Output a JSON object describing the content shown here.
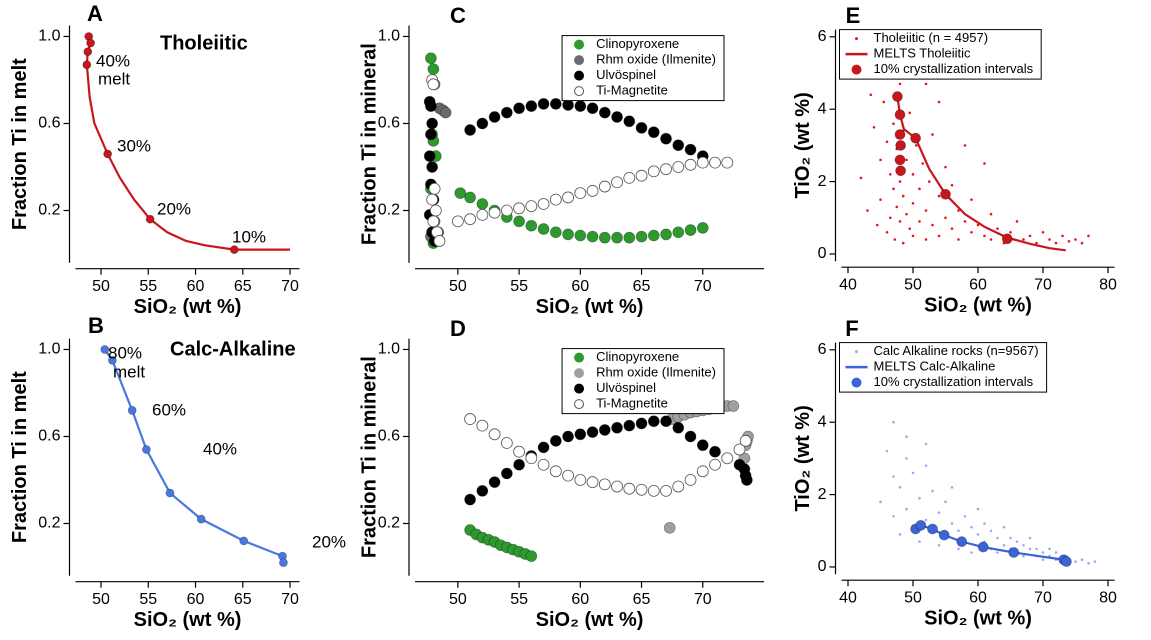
{
  "chart_data": [
    {
      "type": "line",
      "panel_label": "A",
      "title": "Tholeiitic",
      "xlabel": "SiO₂ (wt %)",
      "ylabel": "Fraction Ti in melt",
      "xlim": [
        47.3,
        71
      ],
      "ylim": [
        -0.04,
        1.05
      ],
      "xticks": [
        50,
        55,
        60,
        65,
        70
      ],
      "yticks": [
        {
          "value": 1,
          "label": "1.0"
        },
        0.6,
        0.2
      ],
      "series": [
        {
          "kind": "line",
          "color": "#c8161d",
          "x": [
            48.7,
            48.9,
            48.6,
            48.5,
            48.8,
            49.3,
            50.7,
            52,
            53.5,
            55.2,
            57,
            59,
            61,
            64.1,
            66,
            70
          ],
          "values": [
            1.0,
            0.97,
            0.93,
            0.87,
            0.72,
            0.6,
            0.46,
            0.35,
            0.25,
            0.16,
            0.1,
            0.06,
            0.04,
            0.02,
            0.02,
            0.02
          ]
        },
        {
          "kind": "marker",
          "filled": true,
          "color": "#c8161d",
          "x": [
            48.7,
            48.9,
            48.6,
            48.5,
            50.7,
            55.2,
            64.1
          ],
          "values": [
            1.0,
            0.97,
            0.93,
            0.87,
            0.46,
            0.16,
            0.02
          ]
        }
      ],
      "annotations": [
        "40%",
        "melt",
        "30%",
        "20%",
        "10%"
      ]
    },
    {
      "type": "line",
      "panel_label": "B",
      "title": "Calc-Alkaline",
      "xlabel": "SiO₂ (wt %)",
      "ylabel": "Fraction Ti in melt",
      "xlim": [
        47.3,
        71
      ],
      "ylim": [
        -0.04,
        1.05
      ],
      "xticks": [
        50,
        55,
        60,
        65,
        70
      ],
      "yticks": [
        {
          "value": 1,
          "label": "1.0"
        },
        0.6,
        0.2
      ],
      "series": [
        {
          "kind": "linemarker",
          "filled": true,
          "color": "#4a78e0",
          "x": [
            50.4,
            51.2,
            53.3,
            54.8,
            57.3,
            60.6,
            65.1,
            69.2,
            69.3
          ],
          "values": [
            1.0,
            0.95,
            0.72,
            0.54,
            0.34,
            0.22,
            0.12,
            0.05,
            0.02
          ]
        }
      ],
      "annotations": [
        "80%",
        "melt",
        "60%",
        "40%",
        "20%"
      ]
    },
    {
      "type": "scatter",
      "panel_label": "C",
      "xlabel": "SiO₂ (wt %)",
      "ylabel": "Fraction Ti in mineral",
      "xlim": [
        46.5,
        75
      ],
      "ylim": [
        -0.04,
        1.05
      ],
      "xticks": [
        50,
        55,
        60,
        65,
        70
      ],
      "yticks": [
        {
          "value": 1,
          "label": "1.0"
        },
        0.6,
        0.2
      ],
      "legend": "upper right",
      "series": [
        {
          "name": "Clinopyroxene",
          "kind": "marker",
          "filled": true,
          "color": "#2e9a2e",
          "x": [
            47.8,
            48,
            48.1,
            47.9,
            48,
            48.2,
            47.8,
            48,
            48.1,
            47.9,
            48.2,
            48,
            50.2,
            51,
            52,
            53,
            54,
            55,
            56,
            57,
            58,
            59,
            60,
            61,
            62,
            63,
            64,
            65,
            66,
            67,
            68,
            69,
            70
          ],
          "values": [
            0.9,
            0.85,
            0.78,
            0.55,
            0.52,
            0.45,
            0.3,
            0.25,
            0.15,
            0.1,
            0.07,
            0.05,
            0.28,
            0.26,
            0.23,
            0.2,
            0.17,
            0.15,
            0.13,
            0.115,
            0.1,
            0.09,
            0.085,
            0.08,
            0.075,
            0.075,
            0.075,
            0.08,
            0.085,
            0.09,
            0.1,
            0.11,
            0.12
          ]
        },
        {
          "name": "Rhm oxide (Ilmenite)",
          "kind": "marker",
          "filled": true,
          "color": "#6b6b6b",
          "x": [
            48.5,
            48.8,
            49,
            47.8,
            48.2,
            48.4
          ],
          "values": [
            0.67,
            0.66,
            0.65,
            0.08,
            0.06,
            0.1
          ]
        },
        {
          "name": "Ulvöspinel",
          "kind": "marker",
          "filled": true,
          "color": "#000000",
          "x": [
            47.7,
            47.8,
            47.9,
            47.8,
            47.7,
            47.9,
            47.8,
            48,
            47.7,
            47.9,
            48.1,
            51,
            52,
            53,
            54,
            55,
            56,
            57,
            58,
            59,
            60,
            61,
            62,
            63,
            64,
            65,
            66,
            67,
            68,
            69,
            70
          ],
          "values": [
            0.7,
            0.68,
            0.6,
            0.55,
            0.45,
            0.4,
            0.32,
            0.25,
            0.18,
            0.1,
            0.06,
            0.57,
            0.6,
            0.63,
            0.65,
            0.67,
            0.68,
            0.69,
            0.69,
            0.685,
            0.68,
            0.67,
            0.65,
            0.63,
            0.61,
            0.58,
            0.56,
            0.53,
            0.5,
            0.48,
            0.45
          ]
        },
        {
          "name": "Ti-Magnetite",
          "kind": "marker",
          "filled": false,
          "color": "#555555",
          "x": [
            47.9,
            48,
            48.1,
            47.9,
            48.2,
            48,
            48.3,
            48.5,
            50,
            51,
            52,
            53,
            54,
            55,
            56,
            57,
            58,
            59,
            60,
            61,
            62,
            63,
            64,
            65,
            66,
            67,
            68,
            69,
            70,
            71,
            72
          ],
          "values": [
            0.8,
            0.78,
            0.3,
            0.25,
            0.2,
            0.15,
            0.1,
            0.06,
            0.15,
            0.16,
            0.18,
            0.19,
            0.2,
            0.21,
            0.22,
            0.23,
            0.25,
            0.26,
            0.28,
            0.29,
            0.31,
            0.33,
            0.35,
            0.36,
            0.38,
            0.39,
            0.4,
            0.41,
            0.42,
            0.42,
            0.42
          ]
        }
      ]
    },
    {
      "type": "scatter",
      "panel_label": "D",
      "xlabel": "SiO₂ (wt %)",
      "ylabel": "Fraction Ti in mineral",
      "xlim": [
        46.5,
        75
      ],
      "ylim": [
        -0.04,
        1.05
      ],
      "xticks": [
        50,
        55,
        60,
        65,
        70
      ],
      "yticks": [
        {
          "value": 1,
          "label": "1.0"
        },
        0.6,
        0.2
      ],
      "legend": "upper right",
      "series": [
        {
          "name": "Clinopyroxene",
          "kind": "marker",
          "filled": true,
          "color": "#2e9a2e",
          "x": [
            51,
            51.5,
            52,
            52.5,
            53,
            53.5,
            54,
            54.5,
            55,
            55.5,
            56
          ],
          "values": [
            0.17,
            0.15,
            0.135,
            0.125,
            0.115,
            0.1,
            0.09,
            0.08,
            0.07,
            0.06,
            0.05
          ]
        },
        {
          "name": "Rhm oxide (Ilmenite)",
          "kind": "marker",
          "filled": true,
          "color": "#a0a0a0",
          "x": [
            67.3,
            67.5,
            68,
            68.5,
            69,
            69.5,
            70,
            70.5,
            71,
            71.5,
            72,
            72.5,
            73.4,
            73.5,
            73.6,
            73.7
          ],
          "values": [
            0.18,
            0.68,
            0.69,
            0.7,
            0.71,
            0.715,
            0.72,
            0.725,
            0.73,
            0.735,
            0.74,
            0.74,
            0.5,
            0.56,
            0.58,
            0.6
          ]
        },
        {
          "name": "Ulvöspinel",
          "kind": "marker",
          "filled": true,
          "color": "#000000",
          "x": [
            51,
            52,
            53,
            54,
            55,
            56,
            57,
            58,
            59,
            60,
            61,
            62,
            63,
            64,
            65,
            66,
            67,
            68,
            69,
            70,
            71,
            72,
            73,
            73.4,
            73.5,
            73.6
          ],
          "values": [
            0.31,
            0.35,
            0.39,
            0.43,
            0.47,
            0.51,
            0.55,
            0.58,
            0.6,
            0.61,
            0.62,
            0.63,
            0.64,
            0.65,
            0.66,
            0.67,
            0.67,
            0.64,
            0.6,
            0.56,
            0.53,
            0.5,
            0.47,
            0.45,
            0.42,
            0.4
          ]
        },
        {
          "name": "Ti-Magnetite",
          "kind": "marker",
          "filled": false,
          "color": "#555555",
          "x": [
            51,
            52,
            53,
            54,
            55,
            56,
            57,
            58,
            59,
            60,
            61,
            62,
            63,
            64,
            65,
            66,
            67,
            68,
            69,
            70,
            71,
            72,
            73,
            73.5
          ],
          "values": [
            0.68,
            0.65,
            0.61,
            0.57,
            0.53,
            0.5,
            0.47,
            0.44,
            0.42,
            0.4,
            0.39,
            0.38,
            0.37,
            0.36,
            0.355,
            0.35,
            0.35,
            0.37,
            0.4,
            0.44,
            0.47,
            0.5,
            0.54,
            0.58
          ]
        }
      ]
    },
    {
      "type": "scatter",
      "panel_label": "E",
      "xlabel": "SiO₂ (wt %)",
      "ylabel": "TiO₂ (wt %)",
      "xlim": [
        39,
        81
      ],
      "ylim": [
        -0.2,
        6.2
      ],
      "xticks": [
        40,
        50,
        60,
        70,
        80
      ],
      "yticks": [
        0,
        2,
        4,
        6
      ],
      "legend": "upper left",
      "series": [
        {
          "name": "Tholeiitic (n = 4957)",
          "kind": "dot",
          "color": "#e8141a",
          "x": [
            42,
            43,
            44,
            44.5,
            45,
            45,
            45.5,
            46,
            46,
            46.5,
            46.5,
            47,
            47,
            47,
            47.2,
            47.5,
            47.5,
            48,
            48,
            48,
            48.5,
            48.5,
            48.5,
            49,
            49,
            49.5,
            49.5,
            50,
            50,
            50,
            50.5,
            51,
            51,
            51.5,
            52,
            52,
            52.5,
            53,
            53,
            54,
            54,
            55,
            55,
            56,
            56,
            57,
            57,
            58,
            59,
            59,
            60,
            61,
            62,
            62,
            63,
            64,
            65,
            66,
            67,
            68,
            69,
            70,
            71,
            72,
            73,
            74,
            75,
            76,
            77,
            43.5,
            46,
            52,
            54,
            58,
            61
          ],
          "values": [
            2.1,
            1.2,
            3.5,
            0.8,
            2.6,
            1.5,
            4.2,
            0.6,
            3.1,
            2.2,
            1.0,
            5.2,
            3.6,
            1.8,
            0.4,
            2.9,
            1.3,
            4.7,
            2.0,
            0.9,
            3.4,
            1.6,
            0.3,
            2.6,
            1.1,
            3.9,
            0.7,
            2.2,
            1.4,
            0.5,
            3.0,
            1.8,
            0.9,
            2.5,
            1.2,
            0.4,
            2.0,
            3.3,
            0.8,
            1.6,
            0.5,
            2.4,
            1.0,
            0.7,
            1.9,
            1.2,
            0.4,
            0.9,
            1.5,
            0.6,
            0.8,
            0.5,
            1.1,
            0.4,
            0.7,
            0.3,
            0.6,
            0.9,
            0.4,
            0.5,
            0.3,
            0.6,
            0.4,
            0.3,
            0.5,
            0.35,
            0.4,
            0.3,
            0.5,
            4.4,
            5.8,
            4.7,
            4.2,
            3.0,
            2.5
          ]
        },
        {
          "name": "MELTS Tholeiitic",
          "kind": "line",
          "color": "#c8161d",
          "x": [
            47.6,
            48,
            48.6,
            50.4,
            52.5,
            55,
            58,
            61,
            64.5,
            68,
            71,
            73.5
          ],
          "values": [
            4.35,
            3.85,
            3.45,
            3.2,
            2.35,
            1.65,
            1.1,
            0.75,
            0.45,
            0.28,
            0.16,
            0.1
          ]
        },
        {
          "name": "10% crystallization intervals",
          "kind": "marker",
          "filled": true,
          "color": "#c8161d",
          "x": [
            47.6,
            48,
            48,
            48.1,
            48,
            48.1,
            50.4,
            55,
            64.5
          ],
          "values": [
            4.35,
            3.85,
            3.3,
            3.0,
            2.6,
            2.3,
            3.2,
            1.65,
            0.42
          ]
        }
      ]
    },
    {
      "type": "scatter",
      "panel_label": "F",
      "xlabel": "SiO₂ (wt %)",
      "ylabel": "TiO₂ (wt %)",
      "xlim": [
        39,
        81
      ],
      "ylim": [
        -0.2,
        6.2
      ],
      "xticks": [
        40,
        50,
        60,
        70,
        80
      ],
      "yticks": [
        0,
        2,
        4,
        6
      ],
      "legend": "upper left",
      "series": [
        {
          "name": "Calc Alkaline rocks (n=9567)",
          "kind": "dot",
          "color": "#8fb0f0",
          "x": [
            45,
            46,
            47,
            47,
            48,
            48,
            49,
            49,
            50,
            50,
            51,
            51,
            52,
            52,
            53,
            53,
            54,
            54,
            55,
            55,
            56,
            56,
            57,
            57,
            58,
            58,
            59,
            59,
            60,
            60,
            61,
            61,
            62,
            62,
            63,
            63,
            64,
            64,
            65,
            65,
            66,
            66,
            67,
            67,
            68,
            68,
            69,
            69,
            70,
            70,
            71,
            71,
            72,
            72,
            73,
            74,
            75,
            76,
            77,
            78,
            47,
            49,
            52
          ],
          "values": [
            1.8,
            3.2,
            2.5,
            1.4,
            2.2,
            0.9,
            1.6,
            3.0,
            2.6,
            1.1,
            1.9,
            0.7,
            2.8,
            1.3,
            1.0,
            2.1,
            1.5,
            0.6,
            1.8,
            0.9,
            1.2,
            2.2,
            1.0,
            0.5,
            1.4,
            0.7,
            1.1,
            0.4,
            0.9,
            1.6,
            0.7,
            1.2,
            0.5,
            1.0,
            0.8,
            0.4,
            0.6,
            1.1,
            0.5,
            0.8,
            0.4,
            0.7,
            0.6,
            0.3,
            0.5,
            0.8,
            0.3,
            0.5,
            0.4,
            0.2,
            0.3,
            0.5,
            0.2,
            0.4,
            0.3,
            0.2,
            0.15,
            0.2,
            0.1,
            0.15,
            4.0,
            3.6,
            3.4
          ]
        },
        {
          "name": "MELTS Calc-Alkaline",
          "kind": "line",
          "color": "#3a64d8",
          "x": [
            50.4,
            51.2,
            53,
            54.8,
            57.5,
            60.8,
            65.5,
            73.2,
            73.6
          ],
          "values": [
            1.05,
            1.15,
            1.05,
            0.88,
            0.7,
            0.55,
            0.4,
            0.2,
            0.15
          ]
        },
        {
          "name": "10% crystallization intervals",
          "kind": "marker",
          "filled": true,
          "color": "#3a64d8",
          "x": [
            50.4,
            51.2,
            53,
            54.8,
            57.5,
            60.8,
            65.5,
            73.2,
            73.6
          ],
          "values": [
            1.05,
            1.15,
            1.05,
            0.88,
            0.7,
            0.55,
            0.4,
            0.2,
            0.15
          ]
        }
      ]
    }
  ]
}
